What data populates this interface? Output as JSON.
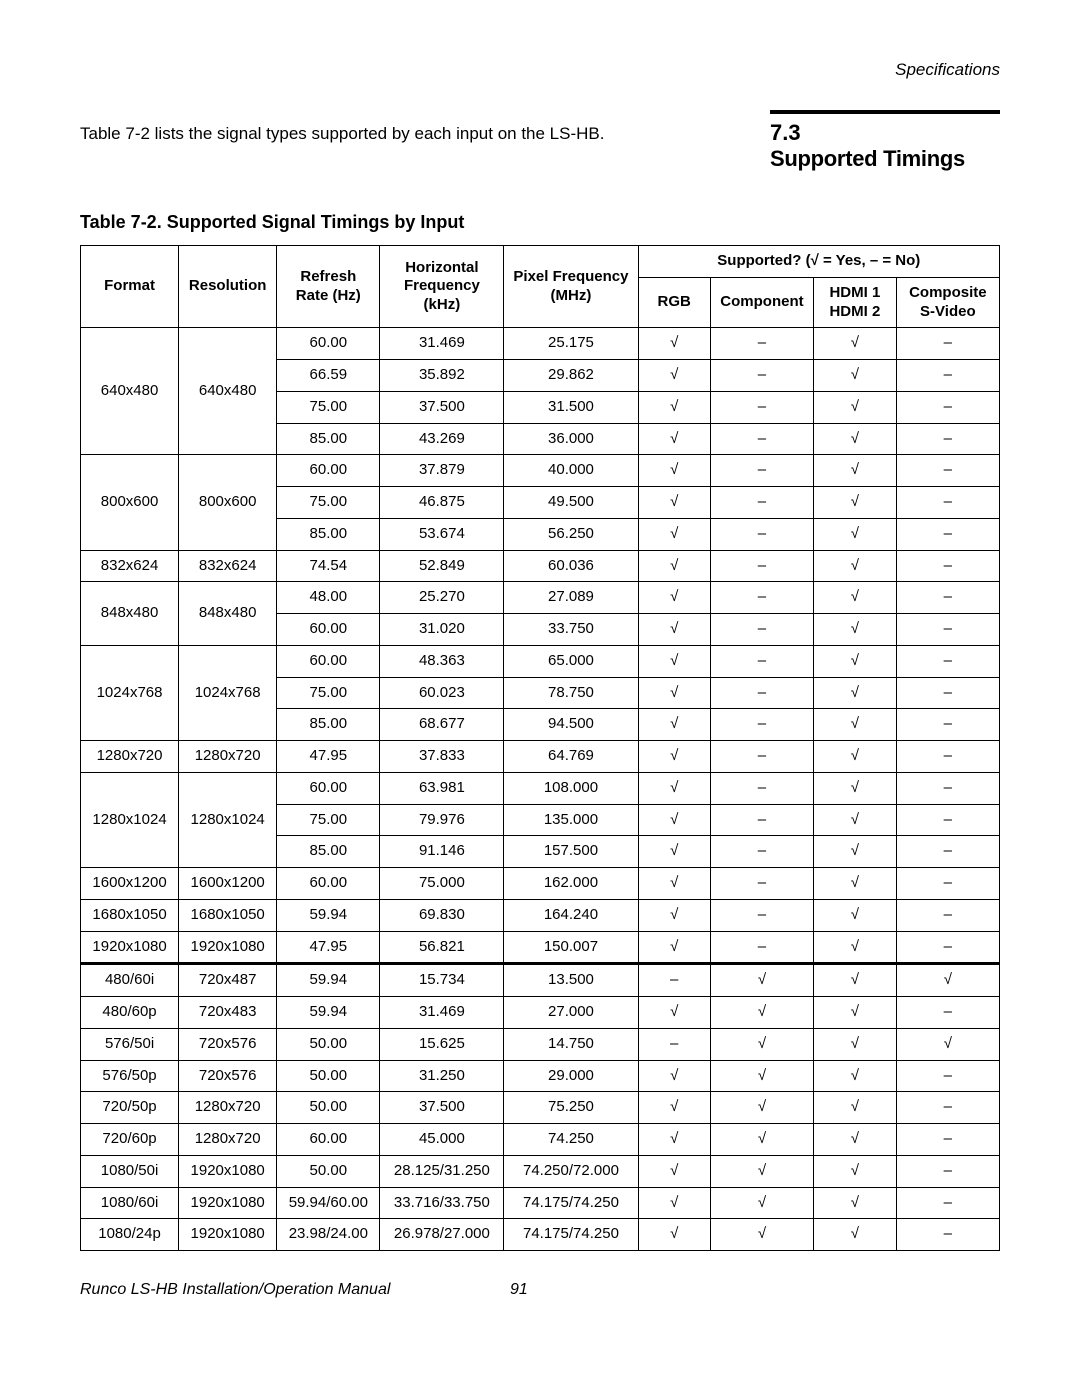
{
  "header": {
    "category": "Specifications"
  },
  "intro": {
    "text": "Table 7-2 lists the signal types supported by each input on the LS-HB."
  },
  "section": {
    "number": "7.3",
    "title": "Supported Timings"
  },
  "table": {
    "caption": "Table 7-2. Supported Signal Timings by Input",
    "supported_header": "Supported? (√ = Yes, – = No)",
    "columns": {
      "format": "Format",
      "resolution": "Resolution",
      "refresh": "Refresh Rate (Hz)",
      "horiz": "Horizontal Frequency (kHz)",
      "pixel": "Pixel Frequency (MHz)",
      "rgb": "RGB",
      "component": "Component",
      "hdmi": "HDMI 1 HDMI 2",
      "composite": "Composite S-Video"
    },
    "groups": [
      {
        "format": "640x480",
        "resolution": "640x480",
        "rows": [
          {
            "refresh": "60.00",
            "horiz": "31.469",
            "pixel": "25.175",
            "rgb": "√",
            "component": "–",
            "hdmi": "√",
            "composite": "–"
          },
          {
            "refresh": "66.59",
            "horiz": "35.892",
            "pixel": "29.862",
            "rgb": "√",
            "component": "–",
            "hdmi": "√",
            "composite": "–"
          },
          {
            "refresh": "75.00",
            "horiz": "37.500",
            "pixel": "31.500",
            "rgb": "√",
            "component": "–",
            "hdmi": "√",
            "composite": "–"
          },
          {
            "refresh": "85.00",
            "horiz": "43.269",
            "pixel": "36.000",
            "rgb": "√",
            "component": "–",
            "hdmi": "√",
            "composite": "–"
          }
        ]
      },
      {
        "format": "800x600",
        "resolution": "800x600",
        "rows": [
          {
            "refresh": "60.00",
            "horiz": "37.879",
            "pixel": "40.000",
            "rgb": "√",
            "component": "–",
            "hdmi": "√",
            "composite": "–"
          },
          {
            "refresh": "75.00",
            "horiz": "46.875",
            "pixel": "49.500",
            "rgb": "√",
            "component": "–",
            "hdmi": "√",
            "composite": "–"
          },
          {
            "refresh": "85.00",
            "horiz": "53.674",
            "pixel": "56.250",
            "rgb": "√",
            "component": "–",
            "hdmi": "√",
            "composite": "–"
          }
        ]
      },
      {
        "format": "832x624",
        "resolution": "832x624",
        "rows": [
          {
            "refresh": "74.54",
            "horiz": "52.849",
            "pixel": "60.036",
            "rgb": "√",
            "component": "–",
            "hdmi": "√",
            "composite": "–"
          }
        ]
      },
      {
        "format": "848x480",
        "resolution": "848x480",
        "rows": [
          {
            "refresh": "48.00",
            "horiz": "25.270",
            "pixel": "27.089",
            "rgb": "√",
            "component": "–",
            "hdmi": "√",
            "composite": "–"
          },
          {
            "refresh": "60.00",
            "horiz": "31.020",
            "pixel": "33.750",
            "rgb": "√",
            "component": "–",
            "hdmi": "√",
            "composite": "–"
          }
        ]
      },
      {
        "format": "1024x768",
        "resolution": "1024x768",
        "rows": [
          {
            "refresh": "60.00",
            "horiz": "48.363",
            "pixel": "65.000",
            "rgb": "√",
            "component": "–",
            "hdmi": "√",
            "composite": "–"
          },
          {
            "refresh": "75.00",
            "horiz": "60.023",
            "pixel": "78.750",
            "rgb": "√",
            "component": "–",
            "hdmi": "√",
            "composite": "–"
          },
          {
            "refresh": "85.00",
            "horiz": "68.677",
            "pixel": "94.500",
            "rgb": "√",
            "component": "–",
            "hdmi": "√",
            "composite": "–"
          }
        ]
      },
      {
        "format": "1280x720",
        "resolution": "1280x720",
        "rows": [
          {
            "refresh": "47.95",
            "horiz": "37.833",
            "pixel": "64.769",
            "rgb": "√",
            "component": "–",
            "hdmi": "√",
            "composite": "–"
          }
        ]
      },
      {
        "format": "1280x1024",
        "resolution": "1280x1024",
        "rows": [
          {
            "refresh": "60.00",
            "horiz": "63.981",
            "pixel": "108.000",
            "rgb": "√",
            "component": "–",
            "hdmi": "√",
            "composite": "–"
          },
          {
            "refresh": "75.00",
            "horiz": "79.976",
            "pixel": "135.000",
            "rgb": "√",
            "component": "–",
            "hdmi": "√",
            "composite": "–"
          },
          {
            "refresh": "85.00",
            "horiz": "91.146",
            "pixel": "157.500",
            "rgb": "√",
            "component": "–",
            "hdmi": "√",
            "composite": "–"
          }
        ]
      },
      {
        "format": "1600x1200",
        "resolution": "1600x1200",
        "rows": [
          {
            "refresh": "60.00",
            "horiz": "75.000",
            "pixel": "162.000",
            "rgb": "√",
            "component": "–",
            "hdmi": "√",
            "composite": "–"
          }
        ]
      },
      {
        "format": "1680x1050",
        "resolution": "1680x1050",
        "rows": [
          {
            "refresh": "59.94",
            "horiz": "69.830",
            "pixel": "164.240",
            "rgb": "√",
            "component": "–",
            "hdmi": "√",
            "composite": "–"
          }
        ]
      },
      {
        "format": "1920x1080",
        "resolution": "1920x1080",
        "rows": [
          {
            "refresh": "47.95",
            "horiz": "56.821",
            "pixel": "150.007",
            "rgb": "√",
            "component": "–",
            "hdmi": "√",
            "composite": "–"
          }
        ]
      },
      {
        "format": "480/60i",
        "resolution": "720x487",
        "divider": true,
        "rows": [
          {
            "refresh": "59.94",
            "horiz": "15.734",
            "pixel": "13.500",
            "rgb": "–",
            "component": "√",
            "hdmi": "√",
            "composite": "√"
          }
        ]
      },
      {
        "format": "480/60p",
        "resolution": "720x483",
        "rows": [
          {
            "refresh": "59.94",
            "horiz": "31.469",
            "pixel": "27.000",
            "rgb": "√",
            "component": "√",
            "hdmi": "√",
            "composite": "–"
          }
        ]
      },
      {
        "format": "576/50i",
        "resolution": "720x576",
        "rows": [
          {
            "refresh": "50.00",
            "horiz": "15.625",
            "pixel": "14.750",
            "rgb": "–",
            "component": "√",
            "hdmi": "√",
            "composite": "√"
          }
        ]
      },
      {
        "format": "576/50p",
        "resolution": "720x576",
        "rows": [
          {
            "refresh": "50.00",
            "horiz": "31.250",
            "pixel": "29.000",
            "rgb": "√",
            "component": "√",
            "hdmi": "√",
            "composite": "–"
          }
        ]
      },
      {
        "format": "720/50p",
        "resolution": "1280x720",
        "rows": [
          {
            "refresh": "50.00",
            "horiz": "37.500",
            "pixel": "75.250",
            "rgb": "√",
            "component": "√",
            "hdmi": "√",
            "composite": "–"
          }
        ]
      },
      {
        "format": "720/60p",
        "resolution": "1280x720",
        "rows": [
          {
            "refresh": "60.00",
            "horiz": "45.000",
            "pixel": "74.250",
            "rgb": "√",
            "component": "√",
            "hdmi": "√",
            "composite": "–"
          }
        ]
      },
      {
        "format": "1080/50i",
        "resolution": "1920x1080",
        "rows": [
          {
            "refresh": "50.00",
            "horiz": "28.125/31.250",
            "pixel": "74.250/72.000",
            "rgb": "√",
            "component": "√",
            "hdmi": "√",
            "composite": "–"
          }
        ]
      },
      {
        "format": "1080/60i",
        "resolution": "1920x1080",
        "rows": [
          {
            "refresh": "59.94/60.00",
            "horiz": "33.716/33.750",
            "pixel": "74.175/74.250",
            "rgb": "√",
            "component": "√",
            "hdmi": "√",
            "composite": "–"
          }
        ]
      },
      {
        "format": "1080/24p",
        "resolution": "1920x1080",
        "rows": [
          {
            "refresh": "23.98/24.00",
            "horiz": "26.978/27.000",
            "pixel": "74.175/74.250",
            "rgb": "√",
            "component": "√",
            "hdmi": "√",
            "composite": "–"
          }
        ]
      }
    ]
  },
  "footer": {
    "manual": "Runco LS-HB Installation/Operation Manual",
    "page": "91"
  },
  "colors": {
    "text": "#000000",
    "background": "#ffffff",
    "border": "#000000"
  }
}
